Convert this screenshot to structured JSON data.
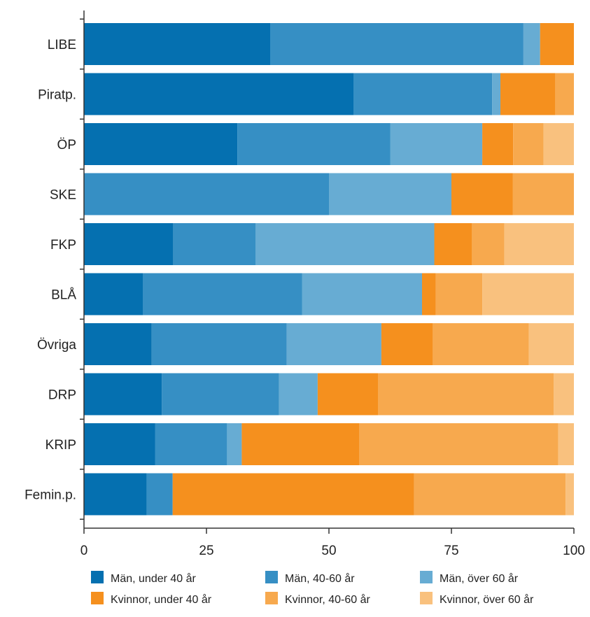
{
  "chart_data": {
    "type": "bar",
    "orientation": "horizontal",
    "stacked": true,
    "title": "",
    "xlabel": "",
    "ylabel": "",
    "xlim": [
      0,
      100
    ],
    "xticks": [
      0,
      25,
      50,
      75,
      100
    ],
    "grid": false,
    "legend_position": "bottom",
    "categories": [
      "LIBE",
      "Piratp.",
      "ÖP",
      "SKE",
      "FKP",
      "BLÅ",
      "Övriga",
      "DRP",
      "KRIP",
      "Femin.p."
    ],
    "series": [
      {
        "name": "Män, under 40 år",
        "color": "#0570b0",
        "values": [
          38,
          55,
          31.3,
          0,
          18.2,
          12,
          13.8,
          15.9,
          14.5,
          12.8
        ]
      },
      {
        "name": "Män, 40-60 år",
        "color": "#368fc4",
        "values": [
          51.7,
          28.3,
          31.2,
          50,
          16.8,
          32.5,
          27.6,
          23.9,
          14.7,
          5.3
        ]
      },
      {
        "name": "Män, över 60 år",
        "color": "#67acd3",
        "values": [
          3.4,
          1.7,
          18.8,
          25,
          36.5,
          24.5,
          19.3,
          7.9,
          3,
          0
        ]
      },
      {
        "name": "Kvinnor, under 40 år",
        "color": "#f5901e",
        "values": [
          6.9,
          11.2,
          6.3,
          12.5,
          7.7,
          2.8,
          10.5,
          12.3,
          24,
          49.3
        ]
      },
      {
        "name": "Kvinnor, 40-60 år",
        "color": "#f7a94e",
        "values": [
          0,
          3.8,
          6.2,
          12.5,
          6.6,
          9.5,
          19.6,
          35.9,
          40.6,
          30.9
        ]
      },
      {
        "name": "Kvinnor, över 60 år",
        "color": "#f9c17e",
        "values": [
          0,
          0,
          6.2,
          0,
          14.2,
          18.7,
          9.2,
          4.1,
          3.2,
          1.7
        ]
      }
    ]
  }
}
